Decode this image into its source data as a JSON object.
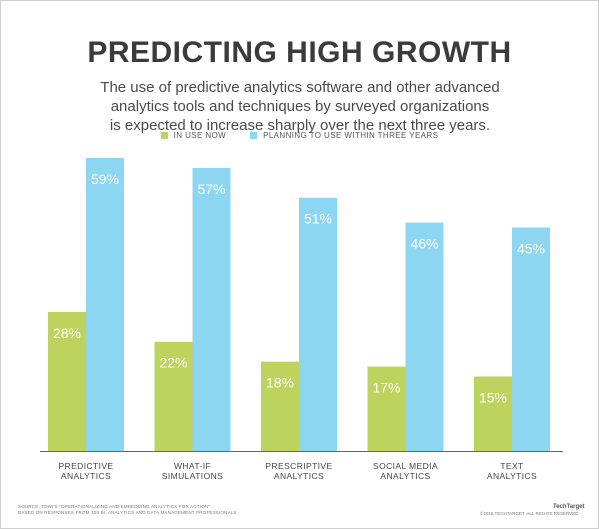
{
  "header": {
    "title": "PREDICTING HIGH GROWTH",
    "subtitle_lines": [
      "The use of predictive analytics software and other advanced",
      "analytics tools and techniques by surveyed organizations",
      "is expected to increase sharply over the next three years."
    ]
  },
  "legend": {
    "in_use": "IN USE NOW",
    "planning": "PLANNING TO USE WITHIN THREE YEARS"
  },
  "colors": {
    "in_use": "#bed35e",
    "planning": "#8dd6f2",
    "axis": "#666666"
  },
  "chart_data": {
    "type": "bar",
    "categories": [
      [
        "PREDICTIVE",
        "ANALYTICS"
      ],
      [
        "WHAT-IF",
        "SIMULATIONS"
      ],
      [
        "PRESCRIPTIVE",
        "ANALYTICS"
      ],
      [
        "SOCIAL MEDIA",
        "ANALYTICS"
      ],
      [
        "TEXT",
        "ANALYTICS"
      ]
    ],
    "series": [
      {
        "name": "IN USE NOW",
        "values": [
          28,
          22,
          18,
          17,
          15
        ]
      },
      {
        "name": "PLANNING TO USE WITHIN THREE YEARS",
        "values": [
          59,
          57,
          51,
          46,
          45
        ]
      }
    ],
    "value_suffix": "%",
    "ylim": [
      0,
      59
    ],
    "grid": false,
    "legend_position": "top-center"
  },
  "footer": {
    "source_lines": [
      "SOURCE: TDWI'S \"OPERATIONALIZING AND EMBEDDING ANALYTICS FOR ACTION\"",
      "BASED ON RESPONSES FROM 309 BI, ANALYTICS AND DATA MANAGEMENT PROFESSIONALS."
    ],
    "copyright": "©2016 TECHTARGET. ALL RIGHTS RESERVED",
    "brand": "TechTarget"
  }
}
